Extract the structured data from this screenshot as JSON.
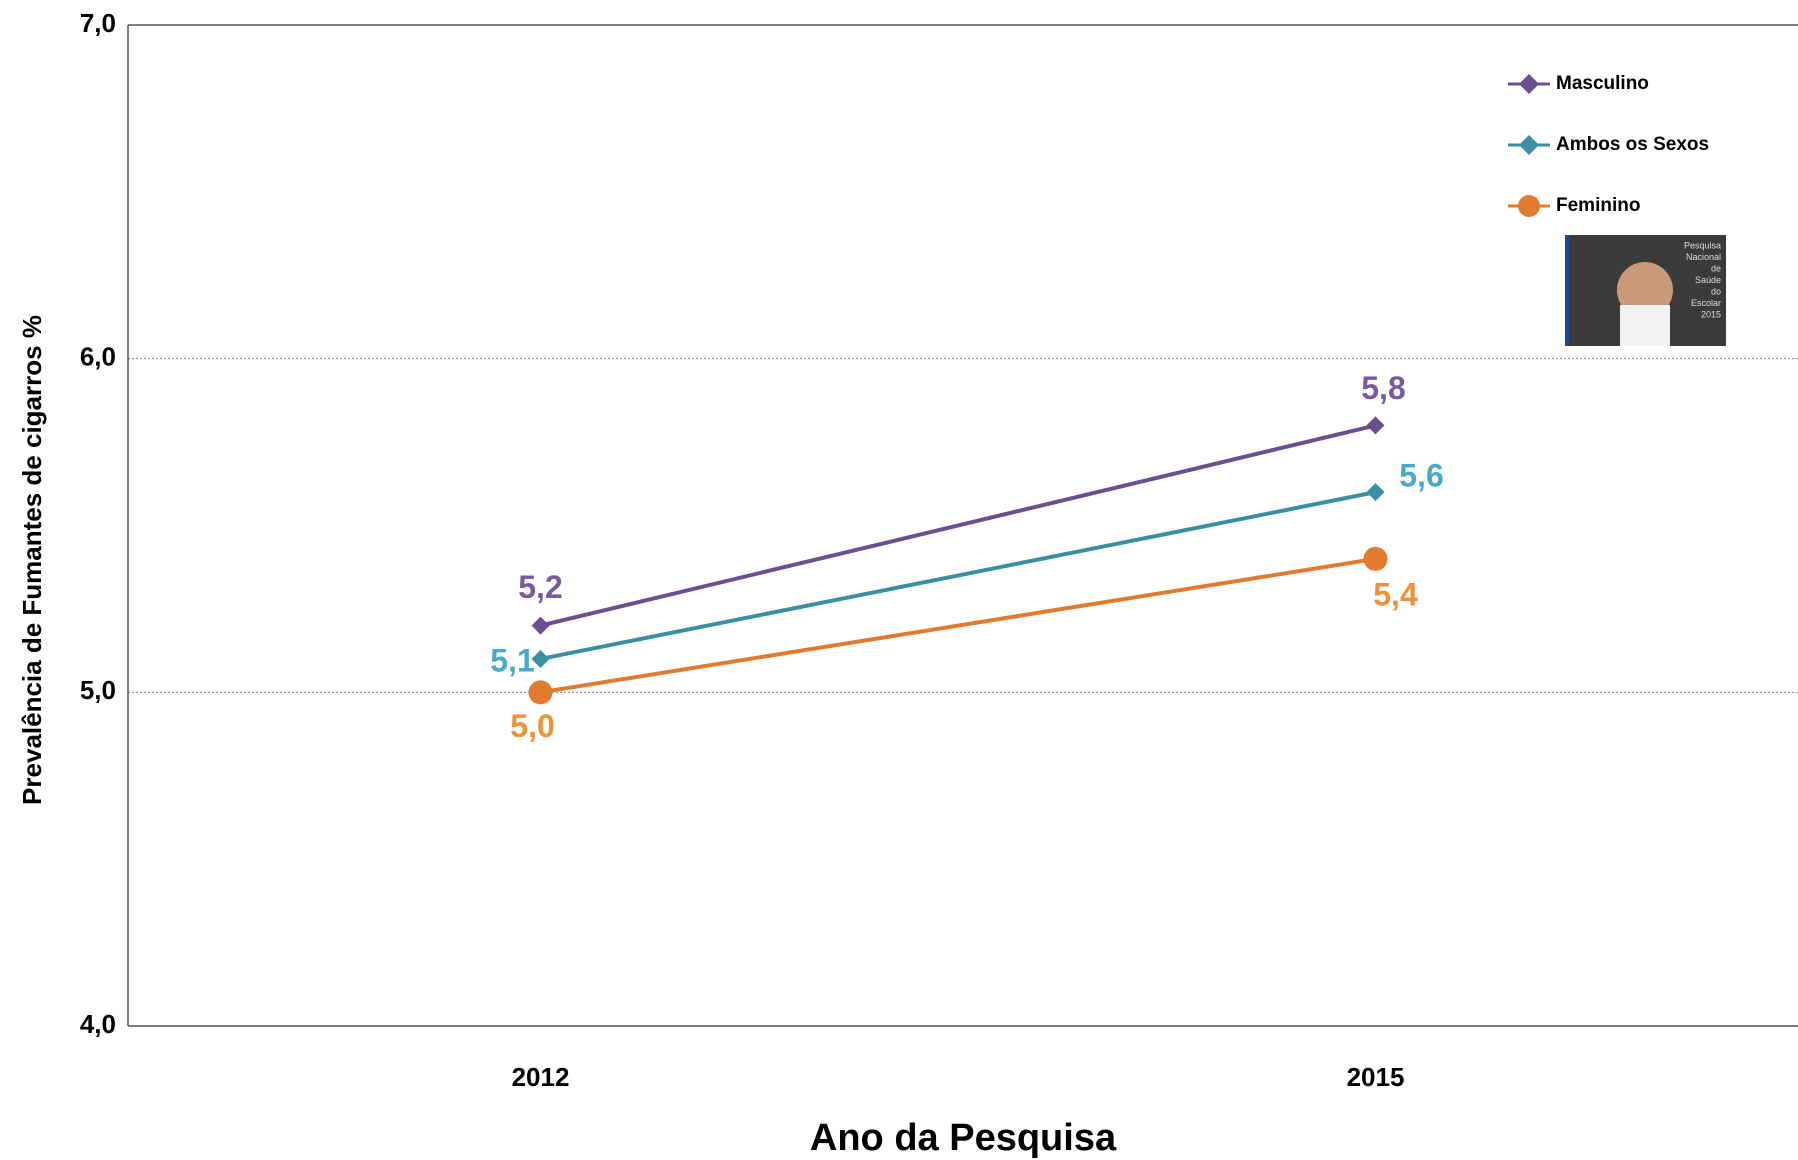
{
  "chart_data": {
    "type": "line",
    "y_label": "Prevalência de Fumantes de cigarros %",
    "x_label": "Ano da Pesquisa",
    "categories": [
      "2012",
      "2015"
    ],
    "ylim": [
      4,
      7
    ],
    "yticks": [
      {
        "value": 4,
        "label": "4,0"
      },
      {
        "value": 5,
        "label": "5,0"
      },
      {
        "value": 6,
        "label": "6,0"
      },
      {
        "value": 7,
        "label": "7,0"
      }
    ],
    "grid": true,
    "legend": "top-right",
    "series": [
      {
        "name": "Masculino",
        "color": "#6b4f8f",
        "label_color": "#7a5a9e",
        "marker": "diamond",
        "values": [
          5.2,
          5.8
        ],
        "value_labels": [
          "5,2",
          "5,8"
        ]
      },
      {
        "name": "Ambos os Sexos",
        "color": "#3a8fa3",
        "label_color": "#4aa8c8",
        "marker": "diamond",
        "values": [
          5.1,
          5.6
        ],
        "value_labels": [
          "5,1",
          "5,6"
        ]
      },
      {
        "name": "Feminino",
        "color": "#e07b30",
        "label_color": "#f0903a",
        "marker": "circle",
        "values": [
          5.0,
          5.4
        ],
        "value_labels": [
          "5,0",
          "5,4"
        ]
      }
    ],
    "inset_text": [
      "Pesquisa",
      "Nacional",
      "de",
      "Saúde",
      "do",
      "Escolar",
      "2015"
    ]
  }
}
